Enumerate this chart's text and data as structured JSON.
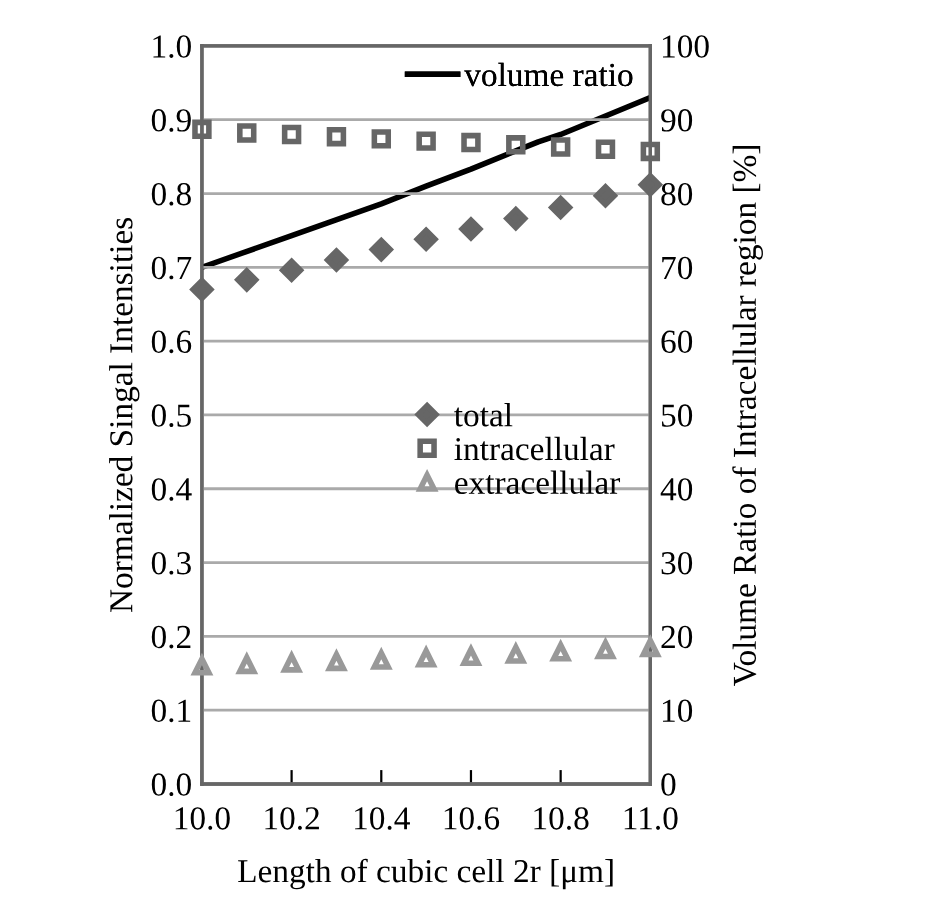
{
  "chart_data": {
    "type": "scatter",
    "xlabel": "Length of cubic cell 2r [μm]",
    "ylabel": "Normalized Singal Intensities",
    "y2label": "Volume Ratio of Intracellular region [%]",
    "x": [
      10.0,
      10.1,
      10.2,
      10.3,
      10.4,
      10.5,
      10.6,
      10.7,
      10.8,
      10.9,
      11.0
    ],
    "series": [
      {
        "name": "total",
        "color": "#666666",
        "marker": "diamond",
        "values": [
          0.67,
          0.683,
          0.696,
          0.71,
          0.724,
          0.738,
          0.752,
          0.766,
          0.781,
          0.797,
          0.812
        ]
      },
      {
        "name": "intracellular",
        "color": "#666666",
        "marker": "square",
        "values": [
          0.887,
          0.882,
          0.88,
          0.877,
          0.874,
          0.871,
          0.869,
          0.866,
          0.863,
          0.86,
          0.857
        ]
      },
      {
        "name": "extracellular",
        "color": "#999999",
        "marker": "triangle",
        "values": [
          0.16,
          0.162,
          0.164,
          0.166,
          0.168,
          0.171,
          0.173,
          0.176,
          0.179,
          0.182,
          0.185
        ]
      },
      {
        "name": "volume ratio",
        "type": "line",
        "axis": "y2",
        "color": "#000000",
        "marker": "none",
        "x": [
          10.0,
          10.2,
          10.4,
          10.5,
          10.6,
          10.75,
          10.8,
          11.0
        ],
        "values": [
          70,
          74.3,
          78.6,
          81,
          83.3,
          87,
          88,
          93
        ]
      }
    ],
    "xlim": [
      10.0,
      11.0
    ],
    "xticks": [
      {
        "value": 10.0,
        "label": "10.0"
      },
      10.2,
      10.4,
      10.6,
      10.8,
      {
        "value": 11.0,
        "label": "11.0"
      }
    ],
    "ylim": [
      0,
      1
    ],
    "yticks": [
      {
        "value": 0,
        "label": "0.0"
      },
      0.1,
      0.2,
      0.3,
      0.4,
      0.5,
      0.6,
      0.7,
      0.8,
      0.9,
      {
        "value": 1,
        "label": "1.0"
      }
    ],
    "y2lim": [
      0,
      100
    ],
    "y2ticks": [
      0,
      10,
      20,
      30,
      40,
      50,
      60,
      70,
      80,
      90,
      100
    ],
    "grid": "y",
    "legend": "right"
  }
}
